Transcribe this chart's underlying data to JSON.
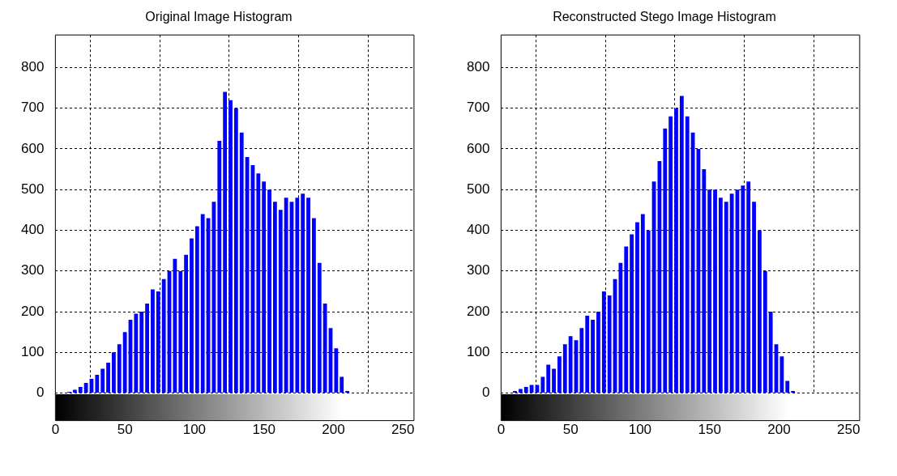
{
  "chart_data": [
    {
      "type": "histogram",
      "title": "Original Image Histogram",
      "color": "#0000ff",
      "grid": true,
      "xlim": [
        0,
        258
      ],
      "ylim": [
        0,
        880
      ],
      "xticks": [
        0,
        50,
        100,
        150,
        200,
        250
      ],
      "yticks": [
        0,
        100,
        200,
        300,
        400,
        500,
        600,
        700,
        800
      ],
      "bins": [
        0,
        4,
        8,
        12,
        16,
        20,
        24,
        28,
        32,
        36,
        40,
        44,
        48,
        52,
        56,
        60,
        64,
        68,
        72,
        76,
        80,
        84,
        88,
        92,
        96,
        100,
        104,
        108,
        112,
        116,
        120,
        124,
        128,
        132,
        136,
        140,
        144,
        148,
        152,
        156,
        160,
        164,
        168,
        172,
        176,
        180,
        184,
        188,
        192,
        196,
        200,
        204,
        208,
        212,
        216,
        220,
        224,
        228,
        232,
        236,
        240,
        244,
        248,
        252,
        256
      ],
      "values": [
        0,
        0,
        3,
        8,
        15,
        25,
        35,
        45,
        60,
        75,
        100,
        120,
        150,
        180,
        195,
        200,
        220,
        255,
        250,
        280,
        300,
        330,
        300,
        340,
        380,
        410,
        440,
        430,
        470,
        620,
        740,
        720,
        700,
        640,
        580,
        560,
        540,
        520,
        500,
        470,
        450,
        480,
        470,
        480,
        490,
        480,
        430,
        320,
        220,
        160,
        110,
        40,
        5,
        0,
        0,
        0,
        0,
        0,
        0,
        0,
        0,
        0,
        0,
        0
      ]
    },
    {
      "type": "histogram",
      "title": "Reconstructed Stego Image Histogram",
      "color": "#0000ff",
      "grid": true,
      "xlim": [
        0,
        258
      ],
      "ylim": [
        0,
        880
      ],
      "xticks": [
        0,
        50,
        100,
        150,
        200,
        250
      ],
      "yticks": [
        0,
        100,
        200,
        300,
        400,
        500,
        600,
        700,
        800
      ],
      "bins": [
        0,
        4,
        8,
        12,
        16,
        20,
        24,
        28,
        32,
        36,
        40,
        44,
        48,
        52,
        56,
        60,
        64,
        68,
        72,
        76,
        80,
        84,
        88,
        92,
        96,
        100,
        104,
        108,
        112,
        116,
        120,
        124,
        128,
        132,
        136,
        140,
        144,
        148,
        152,
        156,
        160,
        164,
        168,
        172,
        176,
        180,
        184,
        188,
        192,
        196,
        200,
        204,
        208,
        212,
        216,
        220,
        224,
        228,
        232,
        236,
        240,
        244,
        248,
        252,
        256
      ],
      "values": [
        0,
        0,
        5,
        10,
        15,
        20,
        20,
        40,
        70,
        60,
        90,
        120,
        140,
        130,
        160,
        190,
        180,
        200,
        250,
        240,
        280,
        320,
        360,
        390,
        420,
        440,
        400,
        520,
        570,
        650,
        680,
        700,
        730,
        680,
        640,
        600,
        550,
        500,
        500,
        480,
        470,
        490,
        500,
        510,
        520,
        470,
        400,
        300,
        200,
        120,
        90,
        30,
        5,
        0,
        0,
        0,
        0,
        0,
        0,
        0,
        0,
        0,
        0,
        0
      ]
    }
  ]
}
